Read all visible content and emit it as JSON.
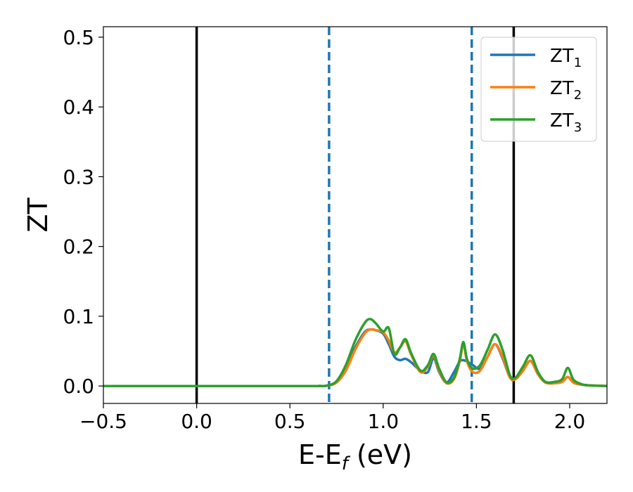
{
  "chart_data": {
    "type": "line",
    "xlabel_main": "E-E",
    "xlabel_sub": "f",
    "xlabel_unit": " (eV)",
    "ylabel": "ZT",
    "xlim": [
      -0.5,
      2.2
    ],
    "ylim": [
      -0.025,
      0.515
    ],
    "xticks": [
      -0.5,
      0.0,
      0.5,
      1.0,
      1.5,
      2.0
    ],
    "xtick_labels": [
      "−0.5",
      "0.0",
      "0.5",
      "1.0",
      "1.5",
      "2.0"
    ],
    "yticks": [
      0.0,
      0.1,
      0.2,
      0.3,
      0.4,
      0.5
    ],
    "ytick_labels": [
      "0.0",
      "0.1",
      "0.2",
      "0.3",
      "0.4",
      "0.5"
    ],
    "grid": false,
    "legend_position": "top-right",
    "vertical_lines": [
      {
        "x": 0.0,
        "style": "solid",
        "color": "#000000"
      },
      {
        "x": 1.7,
        "style": "solid",
        "color": "#000000"
      },
      {
        "x": 0.71,
        "style": "dashed",
        "color": "#1f77b4"
      },
      {
        "x": 1.475,
        "style": "dashed",
        "color": "#1f77b4"
      }
    ],
    "x": [
      -0.5,
      0.0,
      0.5,
      0.65,
      0.7,
      0.75,
      0.8,
      0.85,
      0.9,
      0.93,
      0.96,
      1.0,
      1.03,
      1.06,
      1.09,
      1.12,
      1.15,
      1.2,
      1.24,
      1.27,
      1.3,
      1.34,
      1.38,
      1.41,
      1.43,
      1.45,
      1.48,
      1.52,
      1.56,
      1.6,
      1.64,
      1.68,
      1.71,
      1.75,
      1.79,
      1.83,
      1.87,
      1.92,
      1.96,
      1.99,
      2.02,
      2.06,
      2.1,
      2.2
    ],
    "series": [
      {
        "name_main": "ZT",
        "name_sub": "1",
        "color": "#1f77b4",
        "values": [
          0,
          0,
          0,
          0,
          0.0005,
          0.006,
          0.025,
          0.055,
          0.077,
          0.081,
          0.08,
          0.075,
          0.06,
          0.042,
          0.037,
          0.039,
          0.034,
          0.022,
          0.02,
          0.04,
          0.02,
          0.005,
          0.02,
          0.035,
          0.037,
          0.035,
          0.03,
          0.025,
          0.042,
          0.06,
          0.04,
          0.012,
          0.01,
          0.022,
          0.036,
          0.017,
          0.005,
          0.004,
          0.006,
          0.013,
          0.005,
          0.002,
          0.001,
          0
        ]
      },
      {
        "name_main": "ZT",
        "name_sub": "2",
        "color": "#ff7f0e",
        "values": [
          0,
          0,
          0,
          0,
          0.0005,
          0.005,
          0.022,
          0.052,
          0.075,
          0.081,
          0.08,
          0.077,
          0.065,
          0.048,
          0.055,
          0.064,
          0.045,
          0.02,
          0.028,
          0.044,
          0.022,
          0.004,
          0.01,
          0.035,
          0.06,
          0.035,
          0.02,
          0.022,
          0.042,
          0.06,
          0.042,
          0.012,
          0.01,
          0.022,
          0.036,
          0.017,
          0.005,
          0.004,
          0.006,
          0.013,
          0.005,
          0.002,
          0.001,
          0
        ]
      },
      {
        "name_main": "ZT",
        "name_sub": "3",
        "color": "#2ca02c",
        "values": [
          0,
          0,
          0,
          0,
          0.0006,
          0.007,
          0.03,
          0.065,
          0.09,
          0.096,
          0.09,
          0.078,
          0.083,
          0.046,
          0.055,
          0.067,
          0.047,
          0.022,
          0.03,
          0.046,
          0.025,
          0.005,
          0.012,
          0.038,
          0.063,
          0.038,
          0.025,
          0.03,
          0.052,
          0.074,
          0.052,
          0.015,
          0.012,
          0.028,
          0.044,
          0.02,
          0.006,
          0.006,
          0.01,
          0.026,
          0.009,
          0.003,
          0.001,
          0
        ]
      }
    ]
  }
}
